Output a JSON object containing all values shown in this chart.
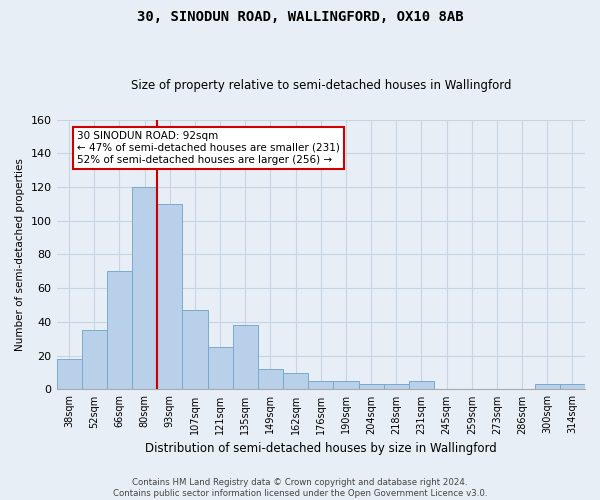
{
  "title": "30, SINODUN ROAD, WALLINGFORD, OX10 8AB",
  "subtitle": "Size of property relative to semi-detached houses in Wallingford",
  "xlabel": "Distribution of semi-detached houses by size in Wallingford",
  "ylabel": "Number of semi-detached properties",
  "footer_line1": "Contains HM Land Registry data © Crown copyright and database right 2024.",
  "footer_line2": "Contains public sector information licensed under the Open Government Licence v3.0.",
  "categories": [
    "38sqm",
    "52sqm",
    "66sqm",
    "80sqm",
    "93sqm",
    "107sqm",
    "121sqm",
    "135sqm",
    "149sqm",
    "162sqm",
    "176sqm",
    "190sqm",
    "204sqm",
    "218sqm",
    "231sqm",
    "245sqm",
    "259sqm",
    "273sqm",
    "286sqm",
    "300sqm",
    "314sqm"
  ],
  "values": [
    18,
    35,
    70,
    120,
    110,
    47,
    25,
    38,
    12,
    10,
    5,
    5,
    3,
    3,
    5,
    0,
    0,
    0,
    0,
    3,
    3
  ],
  "bar_color": "#b8d0ea",
  "bar_edge_color": "#7aaacb",
  "grid_color": "#c5d5e5",
  "background_color": "#e8eef5",
  "vline_color": "#cc0000",
  "annotation_text": "30 SINODUN ROAD: 92sqm\n← 47% of semi-detached houses are smaller (231)\n52% of semi-detached houses are larger (256) →",
  "annotation_box_color": "#ffffff",
  "annotation_box_edge": "#cc0000",
  "ylim": [
    0,
    160
  ],
  "yticks": [
    0,
    20,
    40,
    60,
    80,
    100,
    120,
    140,
    160
  ]
}
